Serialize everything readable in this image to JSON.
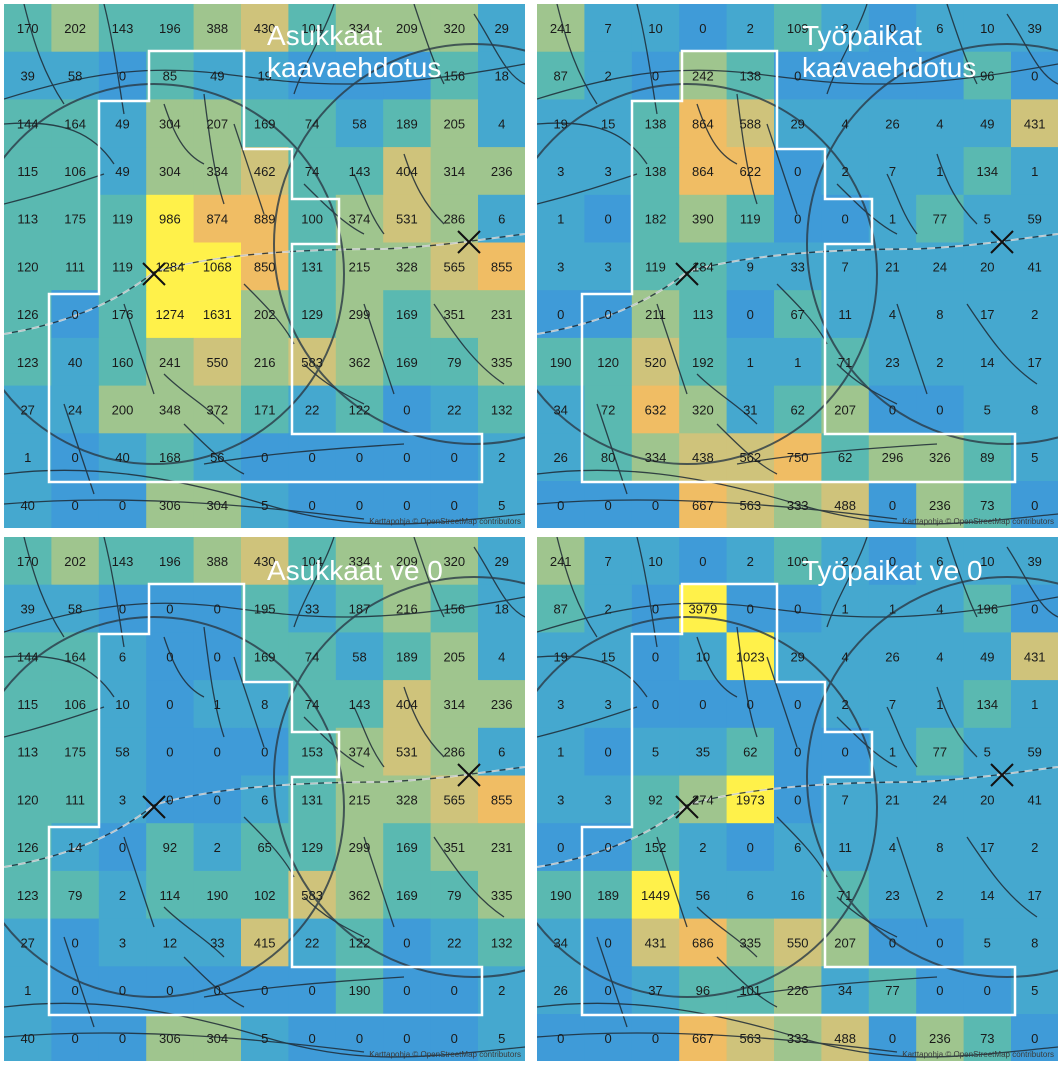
{
  "colors": {
    "zero": "#3f9bd8",
    "low": "#45a8cf",
    "mid": "#5ab9b1",
    "mid2": "#9fc58e",
    "high": "#cfc37b",
    "higher": "#f0bd64",
    "max": "#fff14a",
    "road": "#1e2b36",
    "boundary": "#ffffff",
    "railway": "#8a8f94"
  },
  "panels": [
    {
      "title": "Asukkaat\nkaavaehdotus",
      "attribution": "Karttapohja © OpenStreetMap contributors",
      "grid": [
        [
          170,
          202,
          143,
          196,
          388,
          430,
          104,
          334,
          209,
          320,
          29
        ],
        [
          39,
          58,
          0,
          85,
          49,
          19,
          null,
          null,
          null,
          156,
          18
        ],
        [
          144,
          164,
          49,
          304,
          207,
          169,
          74,
          58,
          189,
          205,
          4
        ],
        [
          115,
          106,
          49,
          304,
          334,
          462,
          74,
          143,
          404,
          314,
          236
        ],
        [
          113,
          175,
          119,
          986,
          874,
          889,
          100,
          374,
          531,
          286,
          6
        ],
        [
          120,
          111,
          119,
          1284,
          1068,
          850,
          131,
          215,
          328,
          565,
          855
        ],
        [
          126,
          0,
          176,
          1274,
          1631,
          202,
          129,
          299,
          169,
          351,
          231
        ],
        [
          123,
          40,
          160,
          241,
          550,
          216,
          583,
          362,
          169,
          79,
          335
        ],
        [
          27,
          24,
          200,
          348,
          372,
          171,
          22,
          122,
          0,
          22,
          132
        ],
        [
          1,
          0,
          40,
          168,
          56,
          0,
          0,
          0,
          0,
          0,
          2
        ],
        [
          40,
          0,
          0,
          306,
          304,
          5,
          0,
          0,
          0,
          0,
          5
        ]
      ]
    },
    {
      "title": "Työpaikat\nkaavaehdotus",
      "attribution": "Karttapohja © OpenStreetMap contributors",
      "grid": [
        [
          241,
          7,
          10,
          0,
          2,
          109,
          2,
          0,
          6,
          10,
          39
        ],
        [
          87,
          2,
          0,
          242,
          138,
          0,
          null,
          null,
          null,
          96,
          0
        ],
        [
          19,
          15,
          138,
          864,
          588,
          29,
          4,
          26,
          4,
          49,
          431
        ],
        [
          3,
          3,
          138,
          864,
          622,
          0,
          2,
          7,
          1,
          134,
          1
        ],
        [
          1,
          0,
          182,
          390,
          119,
          0,
          0,
          1,
          77,
          5,
          59
        ],
        [
          3,
          3,
          119,
          184,
          9,
          33,
          7,
          21,
          24,
          20,
          41
        ],
        [
          0,
          0,
          211,
          113,
          0,
          67,
          11,
          4,
          8,
          17,
          2
        ],
        [
          190,
          120,
          520,
          192,
          1,
          1,
          71,
          23,
          2,
          14,
          17
        ],
        [
          34,
          72,
          632,
          320,
          31,
          62,
          207,
          0,
          0,
          5,
          8
        ],
        [
          26,
          80,
          334,
          438,
          562,
          750,
          62,
          296,
          326,
          89,
          5
        ],
        [
          0,
          0,
          0,
          667,
          563,
          333,
          488,
          0,
          236,
          73,
          0
        ]
      ]
    },
    {
      "title": "Asukkaat ve 0",
      "attribution": "Karttapohja © OpenStreetMap contributors",
      "grid": [
        [
          170,
          202,
          143,
          196,
          388,
          430,
          104,
          334,
          209,
          320,
          29
        ],
        [
          39,
          58,
          0,
          0,
          0,
          195,
          33,
          187,
          216,
          156,
          18
        ],
        [
          144,
          164,
          6,
          0,
          0,
          169,
          74,
          58,
          189,
          205,
          4
        ],
        [
          115,
          106,
          10,
          0,
          1,
          8,
          74,
          143,
          404,
          314,
          236
        ],
        [
          113,
          175,
          58,
          0,
          0,
          0,
          153,
          374,
          531,
          286,
          6
        ],
        [
          120,
          111,
          3,
          0,
          0,
          6,
          131,
          215,
          328,
          565,
          855
        ],
        [
          126,
          14,
          0,
          92,
          2,
          65,
          129,
          299,
          169,
          351,
          231
        ],
        [
          123,
          79,
          2,
          114,
          190,
          102,
          583,
          362,
          169,
          79,
          335
        ],
        [
          27,
          0,
          3,
          12,
          33,
          415,
          22,
          122,
          0,
          22,
          132
        ],
        [
          1,
          0,
          0,
          0,
          0,
          0,
          0,
          190,
          0,
          0,
          2
        ],
        [
          40,
          0,
          0,
          306,
          304,
          5,
          0,
          0,
          0,
          0,
          5
        ]
      ]
    },
    {
      "title": "Työpaikat ve 0",
      "attribution": "Karttapohja © OpenStreetMap contributors",
      "grid": [
        [
          241,
          7,
          10,
          0,
          2,
          109,
          2,
          0,
          6,
          10,
          39
        ],
        [
          87,
          2,
          0,
          3979,
          0,
          0,
          1,
          1,
          4,
          196,
          0
        ],
        [
          19,
          15,
          0,
          10,
          1023,
          29,
          4,
          26,
          4,
          49,
          431
        ],
        [
          3,
          3,
          0,
          0,
          0,
          0,
          2,
          7,
          1,
          134,
          1
        ],
        [
          1,
          0,
          5,
          35,
          62,
          0,
          0,
          1,
          77,
          5,
          59
        ],
        [
          3,
          3,
          92,
          274,
          1973,
          0,
          7,
          21,
          24,
          20,
          41
        ],
        [
          0,
          0,
          152,
          2,
          0,
          6,
          11,
          4,
          8,
          17,
          2
        ],
        [
          190,
          189,
          1449,
          56,
          6,
          16,
          71,
          23,
          2,
          14,
          17
        ],
        [
          34,
          0,
          431,
          686,
          335,
          550,
          207,
          0,
          0,
          5,
          8
        ],
        [
          26,
          0,
          37,
          96,
          101,
          226,
          34,
          77,
          0,
          0,
          5
        ],
        [
          0,
          0,
          0,
          667,
          563,
          333,
          488,
          0,
          236,
          73,
          0
        ]
      ]
    }
  ]
}
